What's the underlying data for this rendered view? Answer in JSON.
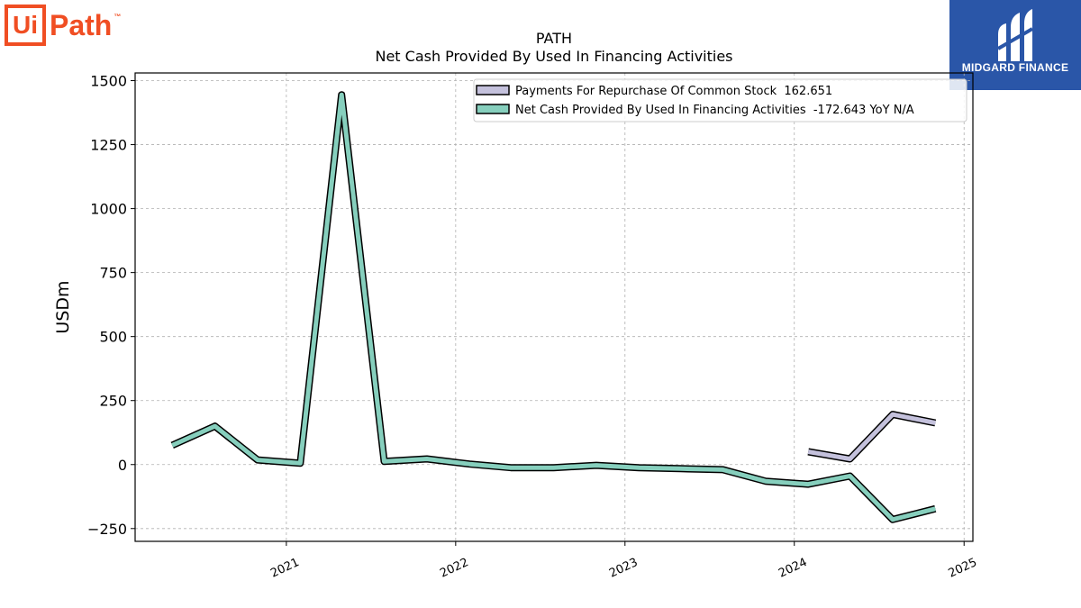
{
  "logos": {
    "left": {
      "box": "Ui",
      "rest": "Path",
      "tm": "™"
    },
    "right": {
      "text": "MIDGARD FINANCE"
    }
  },
  "colors": {
    "repurchase": "#c4c1dc",
    "financing": "#86cfbd",
    "outline": "#000000",
    "brand_left": "#f04e23",
    "brand_right": "#2a56a8"
  },
  "chart_data": {
    "type": "line",
    "title": "PATH",
    "subtitle": "Net Cash Provided By Used In Financing Activities",
    "xlabel": "",
    "ylabel": "USDm",
    "ylim": [
      -300,
      1530
    ],
    "xlim": [
      "2020-02-10",
      "2025-01-20"
    ],
    "yticks": [
      -250,
      0,
      250,
      500,
      750,
      1000,
      1250,
      1500
    ],
    "yticklabels": [
      "−250",
      "0",
      "250",
      "500",
      "750",
      "1000",
      "1250",
      "1500"
    ],
    "xticks": [
      "2021-01-01",
      "2022-01-01",
      "2023-01-01",
      "2024-01-01",
      "2025-01-01"
    ],
    "xticklabels": [
      "2021",
      "2022",
      "2023",
      "2024",
      "2025"
    ],
    "grid": true,
    "legend_position": "top-right",
    "series": [
      {
        "name": "Payments For Repurchase Of Common Stock  162.651",
        "color_key": "repurchase",
        "points": [
          [
            "2024-01-31",
            50
          ],
          [
            "2024-04-30",
            22
          ],
          [
            "2024-07-31",
            196
          ],
          [
            "2024-10-31",
            162.651
          ]
        ]
      },
      {
        "name": "Net Cash Provided By Used In Financing Activities  -172.643 YoY N/A",
        "color_key": "financing",
        "points": [
          [
            "2020-04-30",
            75
          ],
          [
            "2020-07-31",
            150
          ],
          [
            "2020-10-31",
            18
          ],
          [
            "2021-01-31",
            5
          ],
          [
            "2021-04-30",
            1445
          ],
          [
            "2021-07-31",
            12
          ],
          [
            "2021-10-31",
            22
          ],
          [
            "2022-01-31",
            2
          ],
          [
            "2022-04-30",
            -12
          ],
          [
            "2022-07-31",
            -12
          ],
          [
            "2022-10-31",
            -3
          ],
          [
            "2023-01-31",
            -12
          ],
          [
            "2023-04-30",
            -16
          ],
          [
            "2023-07-31",
            -20
          ],
          [
            "2023-10-31",
            -65
          ],
          [
            "2024-01-31",
            -77
          ],
          [
            "2024-04-30",
            -45
          ],
          [
            "2024-07-31",
            -215
          ],
          [
            "2024-10-31",
            -172.643
          ]
        ]
      }
    ]
  }
}
